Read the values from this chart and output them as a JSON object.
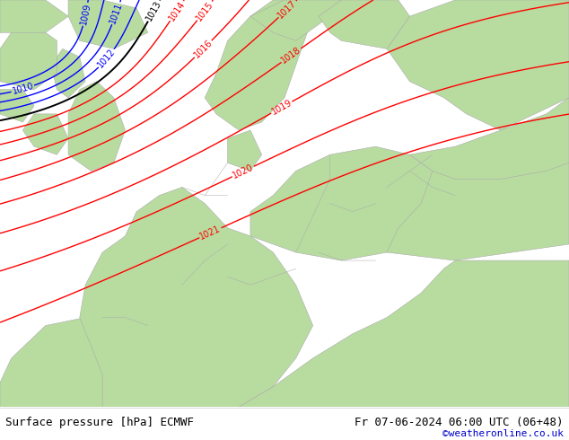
{
  "title_left": "Surface pressure [hPa] ECMWF",
  "title_right": "Fr 07-06-2024 06:00 UTC (06+48)",
  "credit": "©weatheronline.co.uk",
  "sea_color": "#e8e8ee",
  "land_color": "#b8dca0",
  "border_color": "#aaaaaa",
  "credit_color": "#0000cc",
  "label_fontsize": 7
}
